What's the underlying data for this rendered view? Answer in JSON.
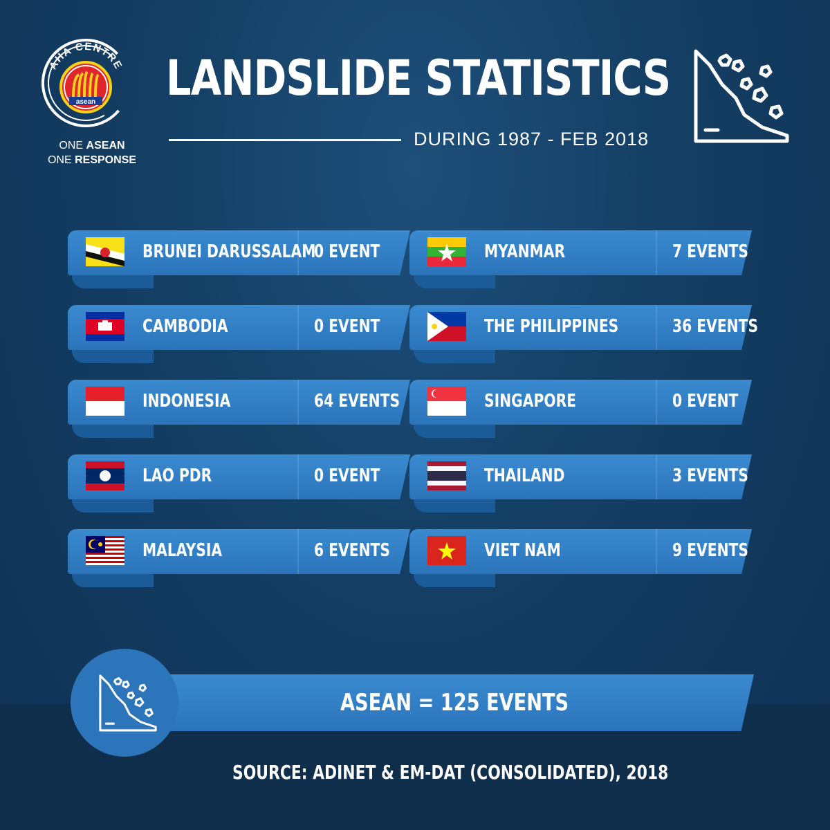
{
  "logo": {
    "arc_text": "AHA CENTRE",
    "emblem_text": "asean",
    "tagline_line1_prefix": "ONE ",
    "tagline_line1_bold": "ASEAN",
    "tagline_line2_prefix": "ONE ",
    "tagline_line2_bold": "RESPONSE"
  },
  "header": {
    "title": "LANDSLIDE STATISTICS",
    "subtitle": "DURING 1987 - FEB 2018",
    "icon": "landslide-icon"
  },
  "rows": [
    {
      "country": "BRUNEI DARUSSALAM",
      "count": "0 EVENT",
      "flag": "brunei-flag"
    },
    {
      "country": "MYANMAR",
      "count": "7 EVENTS",
      "flag": "myanmar-flag"
    },
    {
      "country": "CAMBODIA",
      "count": "0 EVENT",
      "flag": "cambodia-flag"
    },
    {
      "country": "THE PHILIPPINES",
      "count": "36 EVENTS",
      "flag": "philippines-flag"
    },
    {
      "country": "INDONESIA",
      "count": "64 EVENTS",
      "flag": "indonesia-flag"
    },
    {
      "country": "SINGAPORE",
      "count": "0 EVENT",
      "flag": "singapore-flag"
    },
    {
      "country": "LAO PDR",
      "count": "0 EVENT",
      "flag": "laos-flag"
    },
    {
      "country": "THAILAND",
      "count": "3 EVENTS",
      "flag": "thailand-flag"
    },
    {
      "country": "MALAYSIA",
      "count": "6 EVENTS",
      "flag": "malaysia-flag"
    },
    {
      "country": "VIET NAM",
      "count": "9 EVENTS",
      "flag": "vietnam-flag"
    }
  ],
  "total": {
    "text": "ASEAN =  125 EVENTS",
    "icon": "landslide-icon"
  },
  "source": "SOURCE:   ADINET & EM-DAT (CONSOLIDATED), 2018",
  "colors": {
    "background": "#143e63",
    "ribbon": "#2b74ba",
    "ribbon_shadow": "#1a5b98",
    "text": "#ffffff"
  }
}
